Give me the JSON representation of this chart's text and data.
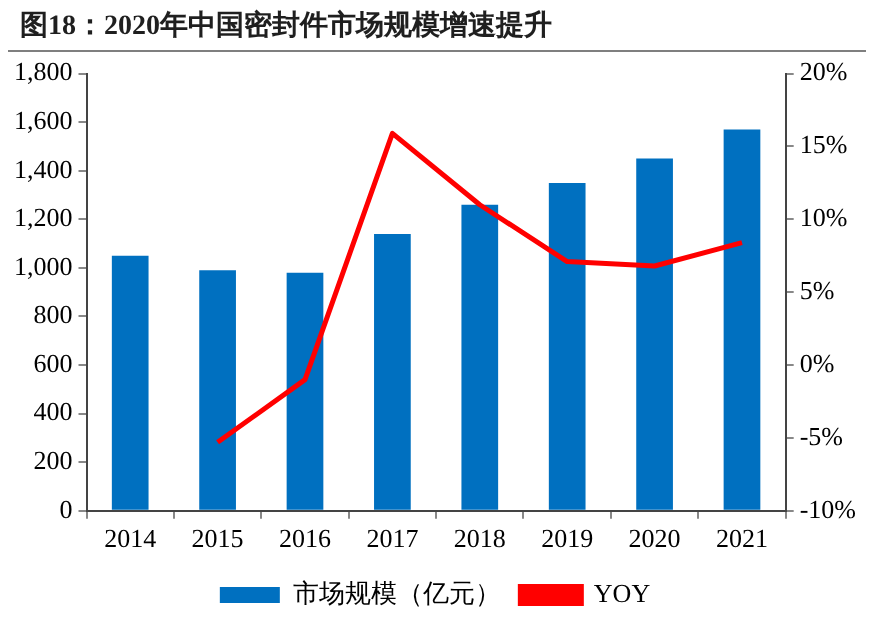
{
  "chart_data": {
    "type": "bar",
    "title": "图18：2020年中国密封件市场规模增速提升",
    "categories": [
      "2014",
      "2015",
      "2016",
      "2017",
      "2018",
      "2019",
      "2020",
      "2021"
    ],
    "series": [
      {
        "name": "市场规模（亿元）",
        "color": "#0070c0",
        "values": [
          1050,
          990,
          980,
          1140,
          1260,
          1350,
          1450,
          1570
        ]
      },
      {
        "name": "YOY",
        "type": "line",
        "axis": "y2",
        "color": "#ff0000",
        "marker": "none",
        "values": [
          null,
          -5.3,
          -1.0,
          15.9,
          11.0,
          7.1,
          6.8,
          8.4
        ]
      }
    ],
    "ylim": [
      0,
      1800
    ],
    "yticks": [
      0,
      {
        "value": 200,
        "label": "200"
      },
      {
        "value": 400,
        "label": "400"
      },
      {
        "value": 600,
        "label": "600"
      },
      {
        "value": 800,
        "label": "800"
      },
      {
        "value": 1000,
        "label": "1,000"
      },
      {
        "value": 1200,
        "label": "1,200"
      },
      {
        "value": 1400,
        "label": "1,400"
      },
      {
        "value": 1600,
        "label": "1,600"
      },
      {
        "value": 1800,
        "label": "1,800"
      }
    ],
    "y2lim": [
      -10,
      20
    ],
    "y2ticks": [
      {
        "value": -10,
        "label": "-10%"
      },
      {
        "value": -5,
        "label": "-5%"
      },
      {
        "value": 0,
        "label": "0%"
      },
      {
        "value": 5,
        "label": "5%"
      },
      {
        "value": 10,
        "label": "10%"
      },
      {
        "value": 15,
        "label": "15%"
      },
      {
        "value": 20,
        "label": "20%"
      }
    ],
    "grid": false,
    "legend": "bottom"
  }
}
